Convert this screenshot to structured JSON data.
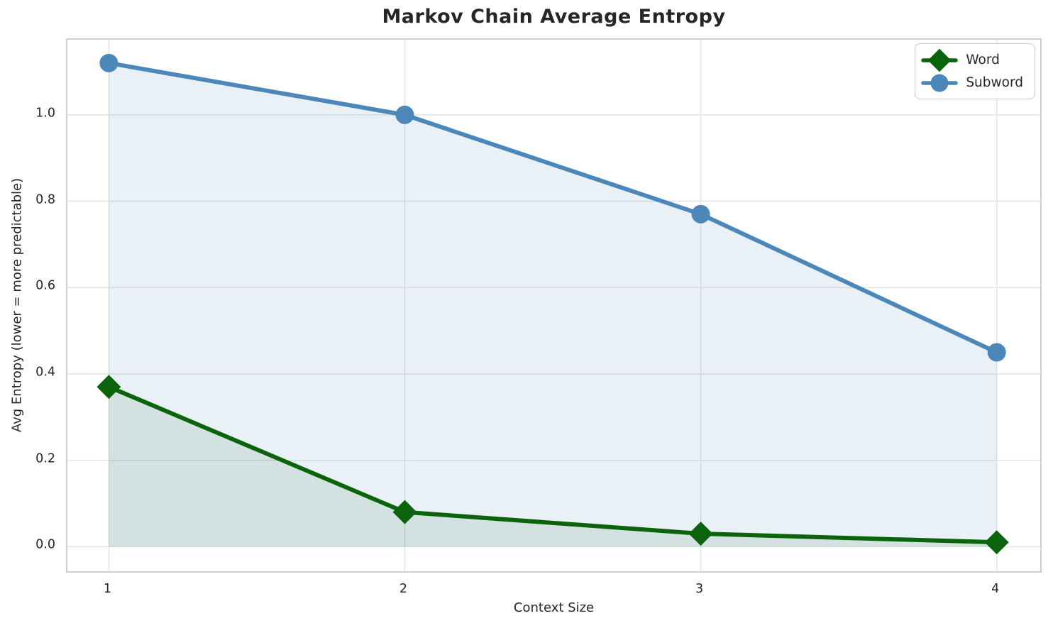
{
  "chart_data": {
    "type": "line",
    "title": "Markov Chain Average Entropy",
    "xlabel": "Context Size",
    "ylabel": "Avg Entropy (lower = more predictable)",
    "x": [
      1,
      2,
      3,
      4
    ],
    "series": [
      {
        "name": "Word",
        "values": [
          0.37,
          0.08,
          0.03,
          0.01
        ],
        "color": "#0b640b",
        "marker": "diamond",
        "fill_opacity": 0.1
      },
      {
        "name": "Subword",
        "values": [
          1.12,
          1.0,
          0.77,
          0.45
        ],
        "color": "#4c87b9",
        "marker": "circle",
        "fill_opacity": 0.12
      }
    ],
    "xticks": [
      1,
      2,
      3,
      4
    ],
    "yticks": [
      0.0,
      0.2,
      0.4,
      0.6,
      0.8,
      1.0
    ],
    "xlim": [
      0.86,
      4.147
    ],
    "ylim": [
      -0.057,
      1.174
    ],
    "grid": true,
    "grid_color": "#e5e5e5",
    "legend_position": "upper right",
    "line_width": 6,
    "background": "#ffffff"
  }
}
